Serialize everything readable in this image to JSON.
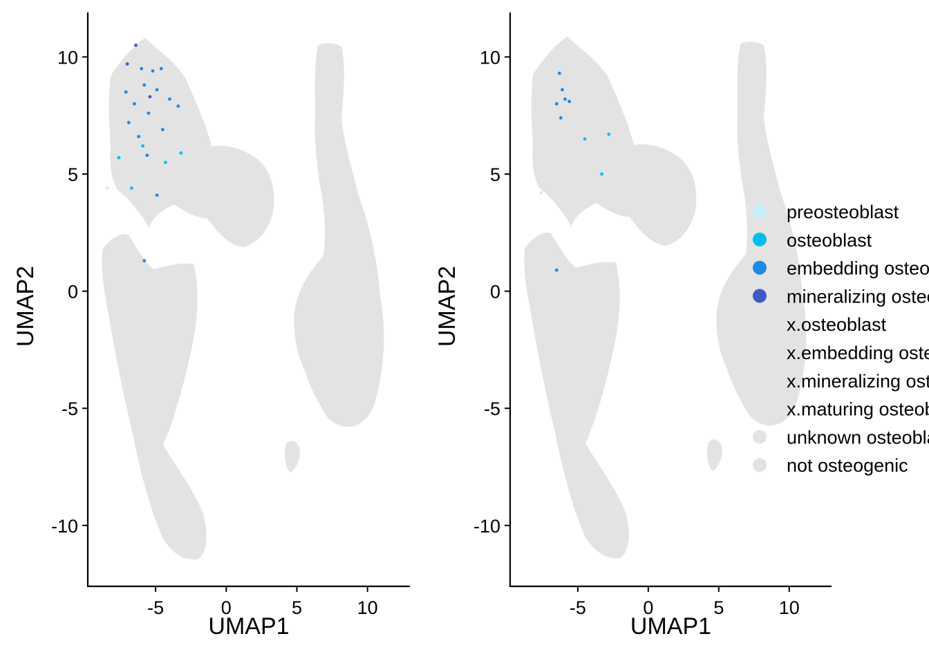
{
  "chart_data": [
    {
      "type": "scatter",
      "xlabel": "UMAP1",
      "ylabel": "UMAP2",
      "xlim": [
        -9.8,
        13
      ],
      "ylim": [
        -12.6,
        11.9
      ],
      "xticks": [
        -5,
        0,
        5,
        10
      ],
      "yticks": [
        -10,
        -5,
        0,
        5,
        10
      ],
      "xtick_labels": [
        "-5",
        "0",
        "5",
        "10"
      ],
      "ytick_labels": [
        "-10",
        "-5",
        "0",
        "5",
        "10"
      ],
      "grid": false,
      "highlighted_points": [
        {
          "x": -6.0,
          "y": 9.5,
          "category": "embedding osteoblast"
        },
        {
          "x": -5.2,
          "y": 9.4,
          "category": "embedding osteoblast"
        },
        {
          "x": -4.6,
          "y": 9.5,
          "category": "embedding osteoblast"
        },
        {
          "x": -7.1,
          "y": 8.5,
          "category": "embedding osteoblast"
        },
        {
          "x": -6.5,
          "y": 8.0,
          "category": "embedding osteoblast"
        },
        {
          "x": -5.8,
          "y": 8.8,
          "category": "embedding osteoblast"
        },
        {
          "x": -4.9,
          "y": 8.6,
          "category": "embedding osteoblast"
        },
        {
          "x": -4.0,
          "y": 8.2,
          "category": "embedding osteoblast"
        },
        {
          "x": -6.9,
          "y": 7.2,
          "category": "embedding osteoblast"
        },
        {
          "x": -5.5,
          "y": 7.6,
          "category": "embedding osteoblast"
        },
        {
          "x": -3.4,
          "y": 7.9,
          "category": "embedding osteoblast"
        },
        {
          "x": -6.2,
          "y": 6.6,
          "category": "embedding osteoblast"
        },
        {
          "x": -4.5,
          "y": 6.9,
          "category": "embedding osteoblast"
        },
        {
          "x": -5.6,
          "y": 5.8,
          "category": "embedding osteoblast"
        },
        {
          "x": -4.9,
          "y": 4.1,
          "category": "embedding osteoblast"
        },
        {
          "x": -5.8,
          "y": 1.3,
          "category": "embedding osteoblast"
        },
        {
          "x": -6.4,
          "y": 10.5,
          "category": "mineralizing osteoblast"
        },
        {
          "x": -7.0,
          "y": 9.7,
          "category": "mineralizing osteoblast"
        },
        {
          "x": -5.4,
          "y": 8.3,
          "category": "mineralizing osteoblast"
        },
        {
          "x": -7.6,
          "y": 5.7,
          "category": "osteoblast"
        },
        {
          "x": -6.7,
          "y": 4.4,
          "category": "osteoblast"
        },
        {
          "x": -5.9,
          "y": 6.2,
          "category": "osteoblast"
        },
        {
          "x": -3.2,
          "y": 5.9,
          "category": "osteoblast"
        },
        {
          "x": -4.3,
          "y": 5.5,
          "category": "osteoblast"
        },
        {
          "x": -7.3,
          "y": 4.9,
          "category": "preosteoblast"
        },
        {
          "x": -6.9,
          "y": 5.2,
          "category": "preosteoblast"
        },
        {
          "x": -8.4,
          "y": 4.4,
          "category": "preosteoblast"
        },
        {
          "x": -6.1,
          "y": 4.7,
          "category": "preosteoblast"
        }
      ]
    },
    {
      "type": "scatter",
      "xlabel": "UMAP1",
      "ylabel": "UMAP2",
      "xlim": [
        -9.8,
        13
      ],
      "ylim": [
        -12.6,
        11.9
      ],
      "xticks": [
        -5,
        0,
        5,
        10
      ],
      "yticks": [
        -10,
        -5,
        0,
        5,
        10
      ],
      "xtick_labels": [
        "-5",
        "0",
        "5",
        "10"
      ],
      "ytick_labels": [
        "-10",
        "-5",
        "0",
        "5",
        "10"
      ],
      "grid": false,
      "highlighted_points": [
        {
          "x": -6.3,
          "y": 9.3,
          "category": "embedding osteoblast"
        },
        {
          "x": -6.1,
          "y": 8.6,
          "category": "embedding osteoblast"
        },
        {
          "x": -6.5,
          "y": 8.0,
          "category": "embedding osteoblast"
        },
        {
          "x": -5.9,
          "y": 8.2,
          "category": "embedding osteoblast"
        },
        {
          "x": -5.6,
          "y": 8.1,
          "category": "embedding osteoblast"
        },
        {
          "x": -6.2,
          "y": 7.4,
          "category": "embedding osteoblast"
        },
        {
          "x": -6.5,
          "y": 0.9,
          "category": "embedding osteoblast"
        },
        {
          "x": -4.5,
          "y": 6.5,
          "category": "osteoblast"
        },
        {
          "x": -2.8,
          "y": 6.7,
          "category": "osteoblast"
        },
        {
          "x": -3.3,
          "y": 5.0,
          "category": "osteoblast"
        },
        {
          "x": -7.4,
          "y": 6.2,
          "category": "preosteoblast"
        },
        {
          "x": -7.8,
          "y": 4.9,
          "category": "preosteoblast"
        },
        {
          "x": -7.6,
          "y": 4.2,
          "category": "preosteoblast"
        },
        {
          "x": -5.8,
          "y": 6.9,
          "category": "preosteoblast"
        },
        {
          "x": -5.0,
          "y": 6.0,
          "category": "preosteoblast"
        }
      ]
    }
  ],
  "legend": {
    "placement": "right",
    "items": [
      {
        "label": "preosteoblast",
        "color": "#c6effc",
        "marker": true
      },
      {
        "label": "osteoblast",
        "color": "#00bfef",
        "marker": true
      },
      {
        "label": "embedding osteoblast",
        "color": "#1e88e5",
        "marker": true
      },
      {
        "label": "mineralizing osteoblast",
        "color": "#3c5ac8",
        "marker": true
      },
      {
        "label": "x.osteoblast",
        "color": "#ffffff",
        "marker": false
      },
      {
        "label": "x.embedding osteoblast",
        "color": "#ffffff",
        "marker": false
      },
      {
        "label": "x.mineralizing osteoblast",
        "color": "#ffffff",
        "marker": false
      },
      {
        "label": "x.maturing osteoblast",
        "color": "#ffffff",
        "marker": false
      },
      {
        "label": "unknown osteoblast",
        "color": "#e3e3e3",
        "marker": true
      },
      {
        "label": "not osteogenic",
        "color": "#e3e3e3",
        "marker": true
      }
    ]
  },
  "colors": {
    "background_cells": "#e3e3e3",
    "axis": "#000000"
  }
}
